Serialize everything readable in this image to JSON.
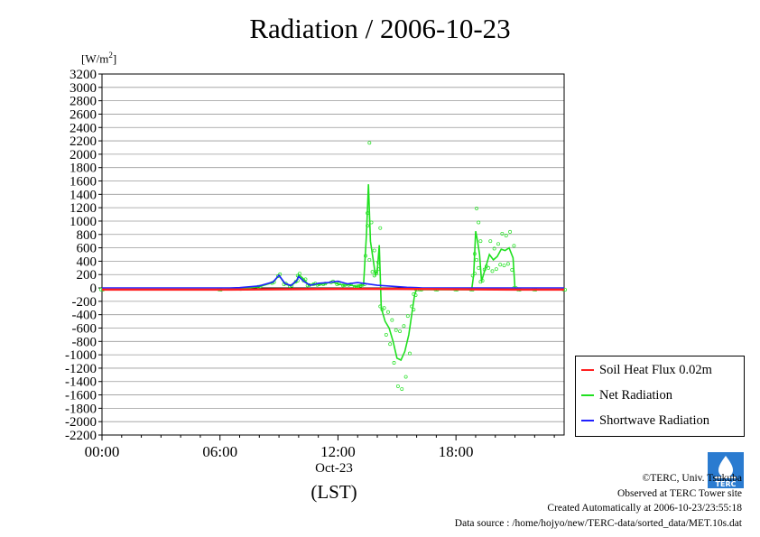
{
  "title": "Radiation / 2006-10-23",
  "unit_label": "[W/m",
  "unit_sup": "2",
  "unit_close": "]",
  "xaxis": {
    "ticks": [
      "00:00",
      "06:00",
      "12:00",
      "18:00"
    ],
    "tick_hours": [
      0,
      6,
      12,
      18
    ],
    "date_label": "Oct-23",
    "lst_label": "(LST)",
    "range_hours": [
      0,
      23.5
    ]
  },
  "legend": [
    {
      "label": "Soil Heat Flux 0.02m",
      "color": "#ff2020"
    },
    {
      "label": "Net Radiation",
      "color": "#20e020"
    },
    {
      "label": "Shortwave Radiation",
      "color": "#2020ff"
    }
  ],
  "credits": {
    "copyright": "©TERC, Univ. Tsukuba",
    "observed": "Observed at TERC Tower site",
    "created": "Created Automatically at 2006-10-23/23:55:18",
    "source": "Data source : /home/hojyo/new/TERC-data/sorted_data/MET.10s.dat"
  },
  "logo": {
    "icon": "terc-logo-icon",
    "text": "TERC"
  },
  "chart_data": {
    "type": "line",
    "title": "Radiation / 2006-10-23",
    "xlabel": "(LST)",
    "ylabel": "[W/m2]",
    "ylim": [
      -2200,
      3200
    ],
    "yticks": [
      3200,
      3000,
      2800,
      2600,
      2400,
      2200,
      2000,
      1800,
      1600,
      1400,
      1200,
      1000,
      800,
      600,
      400,
      200,
      0,
      -200,
      -400,
      -600,
      -800,
      -1000,
      -1200,
      -1400,
      -1600,
      -1800,
      -2000,
      -2200
    ],
    "grid": true,
    "legend_position": "bottom-right",
    "series": [
      {
        "name": "Soil Heat Flux 0.02m",
        "color": "#ff2020",
        "x": [
          0,
          6,
          9,
          12,
          15,
          18,
          21,
          23.5
        ],
        "y": [
          -25,
          -25,
          -20,
          -15,
          -15,
          -20,
          -25,
          -25
        ]
      },
      {
        "name": "Net Radiation",
        "color": "#20e020",
        "x": [
          0,
          6,
          7,
          8,
          8.7,
          9.0,
          9.3,
          9.6,
          9.9,
          10.0,
          10.3,
          10.5,
          10.8,
          11.0,
          11.3,
          11.7,
          12.0,
          12.3,
          12.6,
          12.9,
          13.1,
          13.3,
          13.45,
          13.55,
          13.65,
          13.8,
          13.9,
          14.0,
          14.1,
          14.2,
          14.4,
          14.6,
          14.8,
          15.0,
          15.2,
          15.4,
          15.6,
          15.8,
          15.9,
          16.0,
          16.2,
          17,
          18,
          18.8,
          18.9,
          19.0,
          19.1,
          19.2,
          19.3,
          19.5,
          19.7,
          19.9,
          20.1,
          20.3,
          20.5,
          20.7,
          20.9,
          21.0,
          21.2,
          22,
          23.5
        ],
        "y": [
          -25,
          -25,
          -15,
          20,
          80,
          190,
          60,
          30,
          100,
          200,
          120,
          40,
          60,
          50,
          60,
          90,
          60,
          40,
          50,
          20,
          30,
          50,
          800,
          1550,
          700,
          400,
          200,
          260,
          640,
          -300,
          -500,
          -600,
          -800,
          -1050,
          -1080,
          -950,
          -700,
          -300,
          -100,
          -20,
          -25,
          -25,
          -25,
          -25,
          200,
          850,
          700,
          500,
          100,
          300,
          500,
          420,
          470,
          580,
          560,
          600,
          450,
          0,
          -25,
          -25,
          -25
        ]
      },
      {
        "name": "Shortwave Radiation",
        "color": "#2020ff",
        "x": [
          0,
          6.5,
          7,
          8,
          8.7,
          9.0,
          9.3,
          9.6,
          9.9,
          10.0,
          10.3,
          10.6,
          11.0,
          11.5,
          12.0,
          12.5,
          13.0,
          13.5,
          14.0,
          14.5,
          15.0,
          15.5,
          16.0,
          16.3,
          23.5
        ],
        "y": [
          0,
          0,
          5,
          30,
          90,
          190,
          70,
          35,
          110,
          170,
          90,
          40,
          70,
          80,
          100,
          60,
          80,
          60,
          40,
          30,
          20,
          10,
          5,
          0,
          0
        ]
      }
    ]
  }
}
